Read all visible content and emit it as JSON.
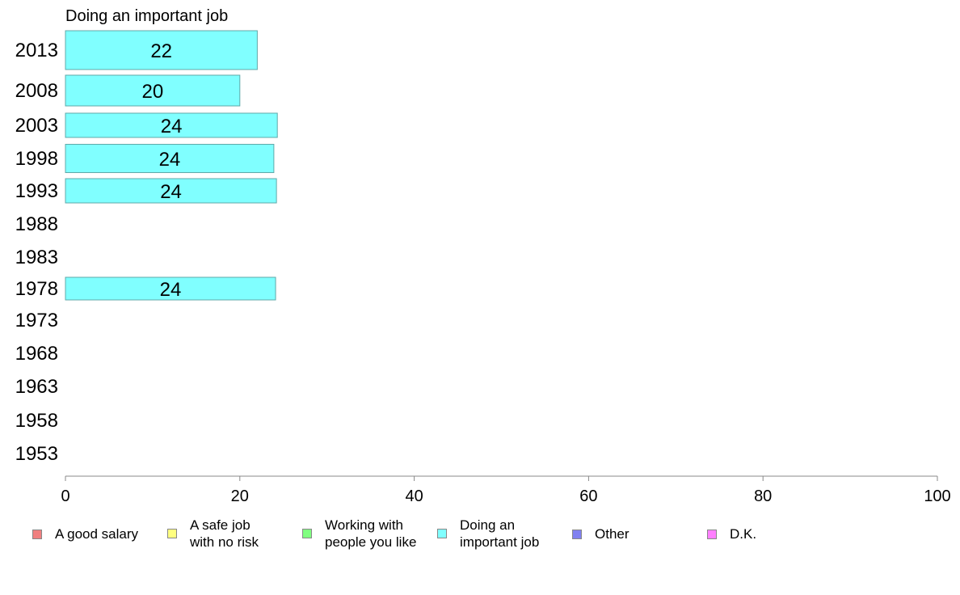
{
  "chart_data": {
    "type": "bar",
    "orientation": "horizontal",
    "title": "Doing an important job",
    "categories": [
      "2013",
      "2008",
      "2003",
      "1998",
      "1993",
      "1988",
      "1983",
      "1978",
      "1973",
      "1968",
      "1963",
      "1958",
      "1953"
    ],
    "series": [
      {
        "name": "Doing an important job",
        "color": "#80ffff",
        "values": [
          22,
          20,
          24.3,
          23.9,
          24.2,
          null,
          null,
          24.1,
          null,
          null,
          null,
          null,
          null
        ],
        "labels": [
          "22",
          "20",
          "24",
          "24",
          "24",
          "",
          "",
          "24",
          "",
          "",
          "",
          "",
          ""
        ]
      }
    ],
    "xlim": [
      0,
      100
    ],
    "xticks": [
      0,
      20,
      40,
      60,
      80,
      100
    ],
    "grid": false,
    "legend_position": "bottom"
  },
  "legend": {
    "items": [
      {
        "label": "A good salary",
        "color": "#f08080"
      },
      {
        "label": "A safe job\nwith no risk",
        "color": "#ffff80"
      },
      {
        "label": "Working with\npeople you like",
        "color": "#80ff80"
      },
      {
        "label": "Doing an\nimportant job",
        "color": "#80ffff"
      },
      {
        "label": "Other",
        "color": "#8080f0"
      },
      {
        "label": "D.K.",
        "color": "#ff80ff"
      }
    ]
  }
}
